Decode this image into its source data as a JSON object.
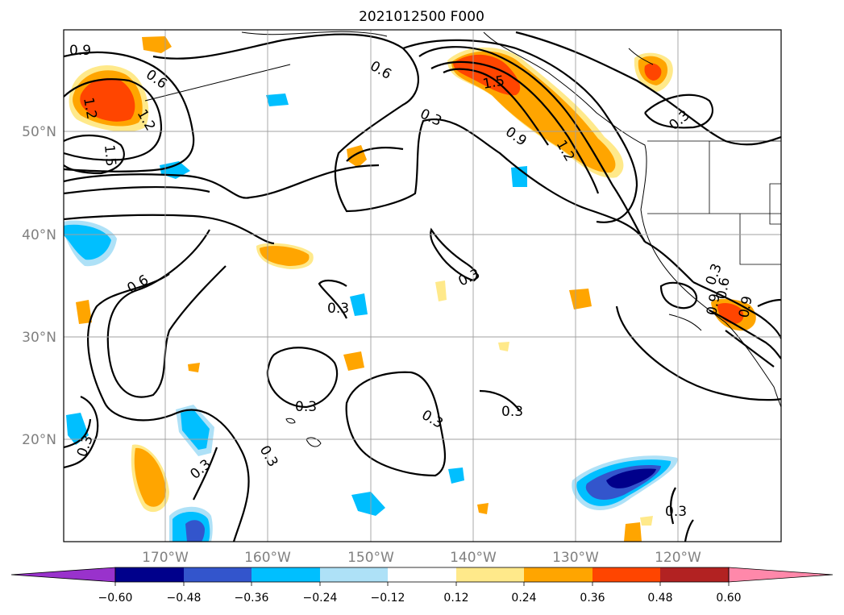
{
  "title": "2021012500 F000",
  "map": {
    "lon_labels": [
      "170°W",
      "160°W",
      "150°W",
      "140°W",
      "130°W",
      "120°W"
    ],
    "lat_labels": [
      "50°N",
      "40°N",
      "30°N",
      "20°N"
    ],
    "contour_labels": [
      "0.9",
      "0.6",
      "1.2",
      "1.2",
      "1.5",
      "0.6",
      "0.3",
      "0.9",
      "1.2",
      "1.5",
      "0.3",
      "0.3",
      "0.3",
      "0.6",
      "0.3",
      "0.3",
      "0.3",
      "0.3",
      "0.3",
      "0.3",
      "0.3",
      "0.3",
      "0.9",
      "0.9",
      "0.6"
    ],
    "grid_color": "#a0a0a0",
    "axis_label_color": "#808080"
  },
  "colorbar": {
    "ticks": [
      "−0.60",
      "−0.48",
      "−0.36",
      "−0.24",
      "−0.12",
      "0.12",
      "0.24",
      "0.36",
      "0.48",
      "0.60"
    ],
    "colors": [
      "#9932cc",
      "#00008b",
      "#3355cc",
      "#00bfff",
      "#aee1f7",
      "#ffffff",
      "#ffe98a",
      "#ffa500",
      "#ff4500",
      "#b22222",
      "#ff88aa"
    ]
  }
}
